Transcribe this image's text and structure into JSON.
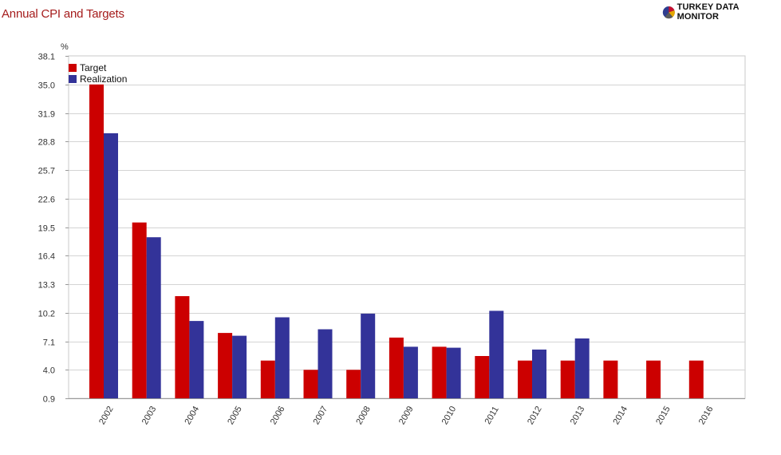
{
  "header": {
    "title": "Annual CPI and Targets",
    "brand_name": "TURKEY DATA MONITOR",
    "brand_logo_icon": "pie-chart-logo-icon"
  },
  "colors": {
    "title": "#a51c1c",
    "target": "#cc0000",
    "realization": "#333399",
    "grid": "#d4d4d4"
  },
  "chart_data": {
    "type": "bar",
    "title": "Annual CPI and Targets",
    "xlabel": "",
    "ylabel": "%",
    "ylim": [
      0.9,
      38.1
    ],
    "yticks": [
      "0.9",
      "4.0",
      "7.1",
      "10.2",
      "13.3",
      "16.4",
      "19.5",
      "22.6",
      "25.7",
      "28.8",
      "31.9",
      "35.0",
      "38.1"
    ],
    "grid": true,
    "legend_position": "top-left",
    "categories": [
      "2002",
      "2003",
      "2004",
      "2005",
      "2006",
      "2007",
      "2008",
      "2009",
      "2010",
      "2011",
      "2012",
      "2013",
      "2014",
      "2015",
      "2016"
    ],
    "series": [
      {
        "name": "Target",
        "color": "#cc0000",
        "values": [
          35.0,
          20.0,
          12.0,
          8.0,
          5.0,
          4.0,
          4.0,
          7.5,
          6.5,
          5.5,
          5.0,
          5.0,
          5.0,
          5.0,
          5.0
        ]
      },
      {
        "name": "Realization",
        "color": "#333399",
        "values": [
          29.7,
          18.4,
          9.3,
          7.7,
          9.7,
          8.4,
          10.1,
          6.5,
          6.4,
          10.4,
          6.2,
          7.4,
          null,
          null,
          null
        ]
      }
    ]
  }
}
